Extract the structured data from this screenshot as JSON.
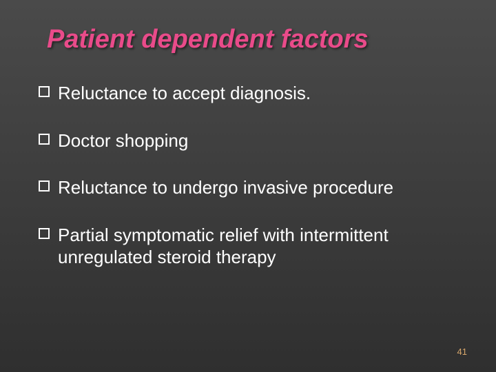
{
  "slide": {
    "title": "Patient dependent factors",
    "title_color": "#e94b8a",
    "title_fontsize": 38,
    "title_italic": true,
    "title_bold": true,
    "background_gradient": [
      "#4a4a4a",
      "#3d3d3d",
      "#2f2f2f"
    ],
    "bullets": [
      {
        "text": "Reluctance to accept diagnosis."
      },
      {
        "text": "Doctor shopping"
      },
      {
        "text": "Reluctance to undergo invasive procedure"
      },
      {
        "text": "Partial symptomatic relief with intermittent unregulated steroid therapy"
      }
    ],
    "bullet_text_color": "#ffffff",
    "bullet_fontsize": 26,
    "bullet_marker_style": "hollow-square",
    "bullet_marker_color": "#ffffff",
    "page_number": "41",
    "page_number_color": "#d9a86c",
    "page_number_fontsize": 13
  }
}
